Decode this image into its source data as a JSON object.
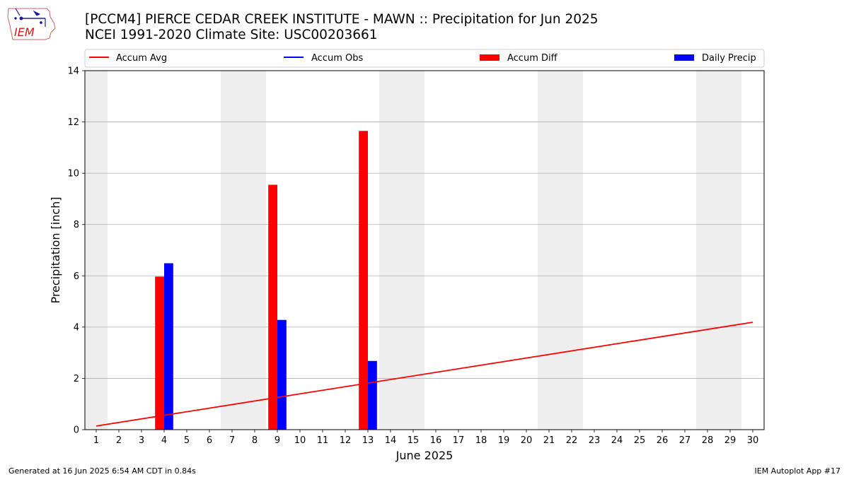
{
  "header": {
    "title_line1": "[PCCM4] PIERCE CEDAR CREEK INSTITUTE - MAWN :: Precipitation for Jun 2025",
    "title_line2": "NCEI 1991-2020 Climate Site: USC00203661"
  },
  "logo": {
    "text": "IEM"
  },
  "footer": {
    "left": "Generated at 16 Jun 2025 6:54 AM CDT in 0.84s",
    "right": "IEM Autoplot App #17"
  },
  "colors": {
    "accum_avg": "#ff0000",
    "accum_obs": "#0000ff",
    "accum_diff": "#ff0000",
    "daily_precip": "#0000ff",
    "weekend_shade": "#eeeeee",
    "grid": "#b0b0b0"
  },
  "chart_data": {
    "type": "bar",
    "title": "[PCCM4] PIERCE CEDAR CREEK INSTITUTE - MAWN :: Precipitation for Jun 2025",
    "subtitle": "NCEI 1991-2020 Climate Site: USC00203661",
    "xlabel": "June 2025",
    "ylabel": "Precipitation [inch]",
    "xlim": [
      0.5,
      30.5
    ],
    "ylim": [
      0,
      14
    ],
    "yticks": [
      0,
      2,
      4,
      6,
      8,
      10,
      12,
      14
    ],
    "xticks": [
      1,
      2,
      3,
      4,
      5,
      6,
      7,
      8,
      9,
      10,
      11,
      12,
      13,
      14,
      15,
      16,
      17,
      18,
      19,
      20,
      21,
      22,
      23,
      24,
      25,
      26,
      27,
      28,
      29,
      30
    ],
    "grid": "y",
    "legend": [
      "Accum Avg",
      "Accum Obs",
      "Accum Diff",
      "Daily Precip"
    ],
    "legend_placement": "top, above plot",
    "weekend_days": [
      1,
      7,
      8,
      14,
      15,
      21,
      22,
      28,
      29
    ],
    "series": [
      {
        "name": "Accum Avg",
        "kind": "line",
        "x": [
          1,
          30
        ],
        "values": [
          0.14,
          4.19
        ]
      },
      {
        "name": "Accum Obs",
        "kind": "line",
        "x": [],
        "values": []
      },
      {
        "name": "Accum Diff",
        "kind": "bar",
        "x": [
          4,
          9,
          13
        ],
        "values": [
          5.97,
          9.55,
          11.65
        ]
      },
      {
        "name": "Daily Precip",
        "kind": "bar",
        "x": [
          4,
          9,
          13
        ],
        "values": [
          6.49,
          4.28,
          2.68
        ]
      }
    ]
  }
}
